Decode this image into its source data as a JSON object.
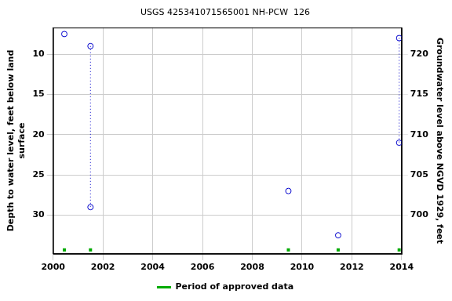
{
  "chart_data": {
    "type": "scatter",
    "title": "USGS 425341071565001 NH-PCW  126",
    "y_label": [
      "Depth to water level, feet below land",
      "surface"
    ],
    "y2_label": "Groundwater level above NGVD 1929, feet",
    "series": [
      {
        "color": "#0000cc",
        "marker": "circle",
        "line_style": "dotted",
        "x": [
          2000.45,
          2001.5,
          2001.5,
          2009.45,
          2011.45,
          2013.9,
          2013.9
        ],
        "values": [
          7.5,
          9,
          29,
          27,
          32.5,
          8,
          21
        ]
      }
    ],
    "approved_periods": {
      "name": "Period of approved data",
      "color": "#00aa00",
      "x": [
        2000.45,
        2001.5,
        2009.45,
        2011.45,
        2013.9
      ]
    },
    "xlim": [
      2000,
      2014
    ],
    "xticks": [
      2000,
      2002,
      2004,
      2006,
      2008,
      2010,
      2012,
      2014
    ],
    "ylim": [
      6.7,
      34.8
    ],
    "yticks": [
      10,
      15,
      20,
      25,
      30
    ],
    "y2lim": [
      695.2,
      723.3
    ],
    "y2ticks": [
      700,
      705,
      710,
      715,
      720
    ],
    "grid": true,
    "legend": "bottom"
  }
}
